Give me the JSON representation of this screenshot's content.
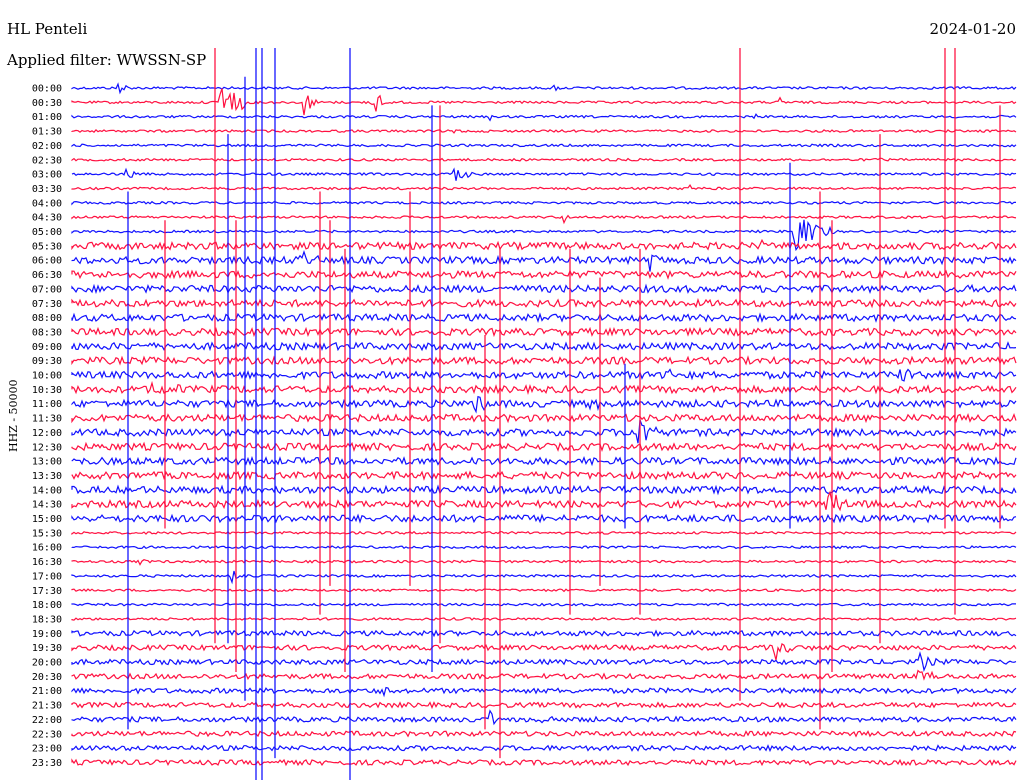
{
  "header": {
    "station": "HL Penteli",
    "date": "2024-01-20",
    "filter": "Applied filter: WWSSN-SP"
  },
  "axis_label": "HHZ - 50000",
  "colors": {
    "trace_a": "#1010ff",
    "trace_b": "#ff1040"
  },
  "time_labels": [
    "00:00",
    "00:30",
    "01:00",
    "01:30",
    "02:00",
    "02:30",
    "03:00",
    "03:30",
    "04:00",
    "04:30",
    "05:00",
    "05:30",
    "06:00",
    "06:30",
    "07:00",
    "07:30",
    "08:00",
    "08:30",
    "09:00",
    "09:30",
    "10:00",
    "10:30",
    "11:00",
    "11:30",
    "12:00",
    "12:30",
    "13:00",
    "13:30",
    "14:00",
    "14:30",
    "15:00",
    "15:30",
    "16:00",
    "16:30",
    "17:00",
    "17:30",
    "18:00",
    "18:30",
    "19:00",
    "19:30",
    "20:00",
    "20:30",
    "21:00",
    "21:30",
    "22:00",
    "22:30",
    "23:00",
    "23:30"
  ]
}
